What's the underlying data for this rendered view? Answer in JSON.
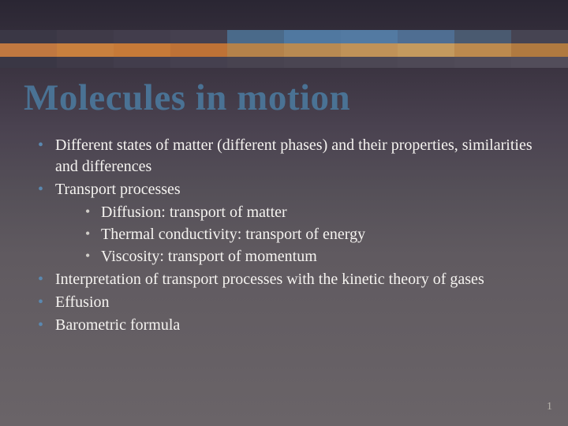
{
  "slide": {
    "title": "Molecules in motion",
    "page_number": "1",
    "title_color": "#4a7294",
    "text_color": "#f5f3f0",
    "bullet_color_top": "#5a88b0",
    "bullet_color_sub": "#d0cdc8",
    "background_gradient": [
      "#2a2633",
      "#3a3340",
      "#4a4250",
      "#555058",
      "#605a60",
      "#6a6468"
    ],
    "bullets": [
      {
        "text": "Different states of matter (different phases) and their properties, similarities and differences"
      },
      {
        "text": "Transport processes",
        "sub": [
          "Diffusion: transport of matter",
          "Thermal conductivity: transport of energy",
          "Viscosity: transport of momentum"
        ]
      },
      {
        "text": "Interpretation of transport processes with the kinetic theory of gases"
      },
      {
        "text": "Effusion"
      },
      {
        "text": "Barometric formula"
      }
    ],
    "stripe_band": {
      "rows": [
        [
          "#3a3745",
          "#3f3a48",
          "#423d4c",
          "#45404f",
          "#4a6a8a",
          "#5078a0",
          "#537aa2",
          "#4f6e92",
          "#4a5a70",
          "#464452"
        ],
        [
          "#c07840",
          "#c8803e",
          "#c67a38",
          "#be7236",
          "#b4824a",
          "#b88a52",
          "#c09258",
          "#c49a5e",
          "#bc8a4e",
          "#b07a40"
        ],
        [
          "#3a3745",
          "#3f3a48",
          "#423d4c",
          "#45404f",
          "#484350",
          "#4a4552",
          "#4c4754",
          "#4e4956",
          "#504b58",
          "#524d5a"
        ]
      ],
      "row_heights": [
        0.35,
        0.35,
        0.3
      ]
    }
  }
}
